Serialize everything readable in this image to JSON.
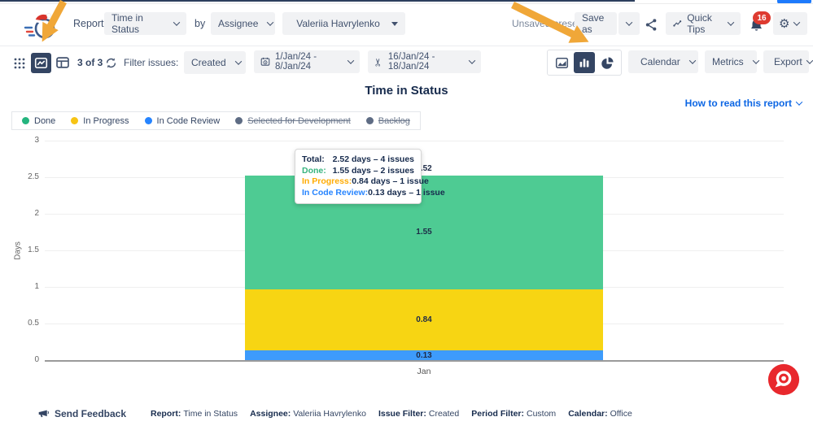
{
  "topbar": {
    "report_label": "Report:",
    "report_value": "Time in Status",
    "by_label": "by",
    "group_by_value": "Assignee",
    "user_value": "Valeriia Havrylenko",
    "unsaved_preset": "Unsaved preset",
    "save_as_label": "Save as",
    "quick_tips_label": "Quick Tips",
    "notification_count": "16"
  },
  "toolbar": {
    "issues_count": "3 of 3",
    "filter_issues_label": "Filter issues:",
    "filter_value": "Created",
    "date_range": "1/Jan/24 - 8/Jan/24",
    "trim_range": "16/Jan/24 - 18/Jan/24",
    "calendar_label": "Calendar",
    "metrics_label": "Metrics",
    "export_label": "Export"
  },
  "report": {
    "title": "Time in Status",
    "help_link": "How to read this report"
  },
  "legend": {
    "items": [
      {
        "label": "Done",
        "color": "#24B47E",
        "active": true
      },
      {
        "label": "In Progress",
        "color": "#F7C414",
        "active": true
      },
      {
        "label": "In Code Review",
        "color": "#2684FF",
        "active": true
      },
      {
        "label": "Selected for Development",
        "color": "#5E6C84",
        "active": false
      },
      {
        "label": "Backlog",
        "color": "#5E6C84",
        "active": false
      }
    ]
  },
  "chart_data": {
    "type": "bar",
    "stacked": true,
    "title": "Time in Status",
    "categories": [
      "Jan"
    ],
    "series": [
      {
        "name": "Done",
        "values": [
          1.55
        ],
        "color": "#4ECB93"
      },
      {
        "name": "In Progress",
        "values": [
          0.84
        ],
        "color": "#F7D513"
      },
      {
        "name": "In Code Review",
        "values": [
          0.13
        ],
        "color": "#3D9BFC"
      }
    ],
    "total": 2.52,
    "total_label": "2.52",
    "xlabel": "Jan",
    "ylabel": "Days",
    "ylim": [
      0,
      3
    ],
    "yticks": [
      "3",
      "2.5",
      "2",
      "1.5",
      "1",
      "0.5",
      "0"
    ],
    "grid": true,
    "legend_position": "top-left"
  },
  "tooltip": {
    "rows": [
      {
        "label": "Total:",
        "value": "2.52 days – 4 issues",
        "color": "#172B4D"
      },
      {
        "label": "Done:",
        "value": "1.55 days – 2 issues",
        "color": "#36B37E"
      },
      {
        "label": "In Progress:",
        "value": "0.84 days – 1 issue",
        "color": "#FFAB00"
      },
      {
        "label": "In Code Review:",
        "value": "0.13 days – 1 issue",
        "color": "#2684FF"
      }
    ]
  },
  "footer": {
    "send_feedback": "Send Feedback",
    "summary": [
      {
        "label": "Report:",
        "value": "Time in Status"
      },
      {
        "label": "Assignee:",
        "value": "Valeriia Havrylenko"
      },
      {
        "label": "Issue Filter:",
        "value": "Created"
      },
      {
        "label": "Period Filter:",
        "value": "Custom"
      },
      {
        "label": "Calendar:",
        "value": "Office"
      }
    ]
  }
}
